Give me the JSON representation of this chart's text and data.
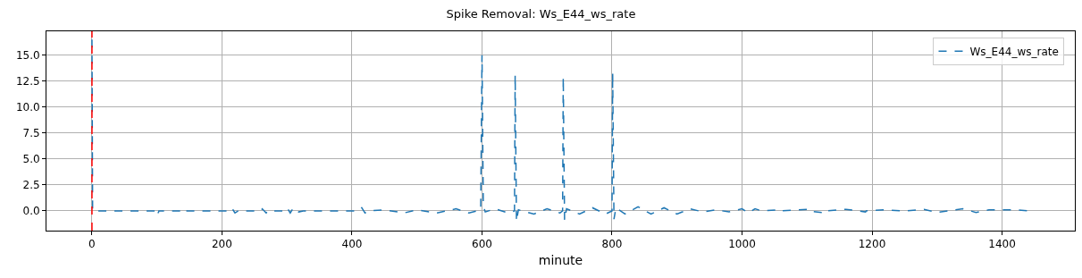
{
  "chart_data": {
    "type": "line",
    "title": "Spike Removal: Ws_E44_ws_rate",
    "xlabel": "minute",
    "xlim": [
      -70,
      1512
    ],
    "xticks": [
      0,
      200,
      400,
      600,
      800,
      1000,
      1200,
      1400
    ],
    "ylim": [
      -1.9,
      17.3
    ],
    "yticks": [
      {
        "value": 0,
        "label": "0.0"
      },
      {
        "value": 2.5,
        "label": "2.5"
      },
      {
        "value": 5,
        "label": "5.0"
      },
      {
        "value": 7.5,
        "label": "7.5"
      },
      {
        "value": 10,
        "label": "10.0"
      },
      {
        "value": 12.5,
        "label": "12.5"
      },
      {
        "value": 15,
        "label": "15.0"
      }
    ],
    "grid": true,
    "legend": "top right",
    "line_style": "dashed",
    "ref_lines": [
      {
        "axis": "x",
        "value": 0,
        "color": "#ff0000",
        "line_style": "dashed"
      }
    ],
    "series": [
      {
        "name": "Ws_E44_ws_rate",
        "color": "#1f77b4",
        "x": [
          0,
          1,
          100,
          101,
          102,
          103,
          140,
          141,
          145,
          146,
          215,
          216,
          220,
          225,
          260,
          262,
          268,
          270,
          295,
          300,
          305,
          310,
          318,
          325,
          410,
          415,
          420,
          425,
          450,
          480,
          500,
          530,
          560,
          580,
          598,
          600,
          602,
          605,
          620,
          640,
          650,
          651,
          653,
          656,
          680,
          700,
          720,
          724,
          725,
          727,
          730,
          750,
          770,
          790,
          800,
          801,
          803,
          806,
          820,
          840,
          860,
          880,
          900,
          920,
          940,
          960,
          980,
          1000,
          1010,
          1020,
          1030,
          1060,
          1061,
          1100,
          1101,
          1130,
          1131,
          1160,
          1190,
          1191,
          1220,
          1250,
          1280,
          1300,
          1340,
          1360,
          1380,
          1420,
          1440
        ],
        "values": [
          16.5,
          0,
          0,
          0.2,
          -0.2,
          0,
          0,
          -0.1,
          0.1,
          0,
          0,
          0.2,
          -0.2,
          0,
          0,
          0.2,
          -0.2,
          0,
          0,
          0.3,
          -0.2,
          0.3,
          -0.1,
          0,
          0,
          0.3,
          -0.2,
          0,
          0.1,
          -0.2,
          0.1,
          -0.2,
          0.2,
          -0.2,
          0.1,
          15,
          0.5,
          -0.1,
          0.2,
          -0.2,
          0,
          13.1,
          -1,
          0.1,
          -0.3,
          0.2,
          -0.2,
          0,
          12.9,
          -0.9,
          0.2,
          -0.3,
          0.3,
          -0.3,
          0,
          13.3,
          -0.8,
          0.3,
          -0.3,
          0.4,
          -0.3,
          0.3,
          -0.3,
          0.2,
          -0.1,
          0.1,
          -0.1,
          0.2,
          -0.2,
          0.2,
          0,
          0.1,
          0,
          0.15,
          0,
          -0.2,
          0,
          0.15,
          -0.1,
          0,
          0.1,
          0,
          0.15,
          -0.15,
          0.2,
          -0.15,
          0.1,
          0.1,
          0
        ]
      }
    ]
  }
}
